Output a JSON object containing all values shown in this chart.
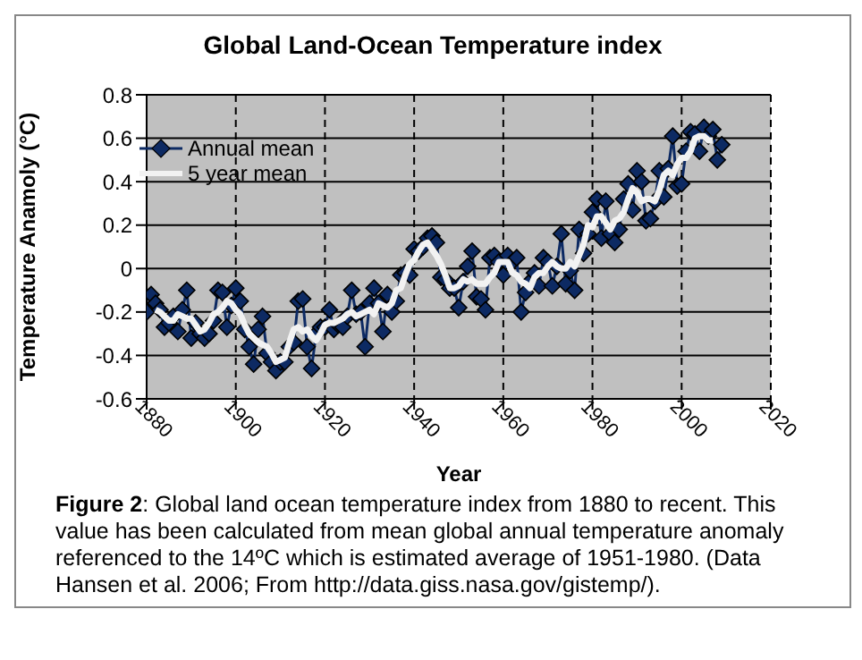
{
  "chart_data": {
    "type": "line",
    "title": "Global Land-Ocean Temperature index",
    "xlabel": "Year",
    "ylabel": "Temperature Anamoly (°C)",
    "xlim": [
      1880,
      2020
    ],
    "xticks": [
      1880,
      1900,
      1920,
      1940,
      1960,
      1980,
      2000,
      2020
    ],
    "ylim": [
      -0.6,
      0.8
    ],
    "yticks": [
      -0.6,
      -0.4,
      -0.2,
      0,
      0.2,
      0.4,
      0.6,
      0.8
    ],
    "grid": true,
    "legend": "top left",
    "annotations": [
      "Figure 2: Global land ocean temperature index from 1880 to recent.  This value has been calculated from mean global annual temperature anomaly referenced to the 14ºC which is estimated average of 1951-1980. (Data Hansen et al. 2006; From http://data.giss.nasa.gov/gistemp/)."
    ],
    "series": [
      {
        "name": "Annual mean",
        "color": "#0d2a63",
        "marker": "diamond",
        "x": [
          1880,
          1881,
          1882,
          1883,
          1884,
          1885,
          1886,
          1887,
          1888,
          1889,
          1890,
          1891,
          1892,
          1893,
          1894,
          1895,
          1896,
          1897,
          1898,
          1899,
          1900,
          1901,
          1902,
          1903,
          1904,
          1905,
          1906,
          1907,
          1908,
          1909,
          1910,
          1911,
          1912,
          1913,
          1914,
          1915,
          1916,
          1917,
          1918,
          1919,
          1920,
          1921,
          1922,
          1923,
          1924,
          1925,
          1926,
          1927,
          1928,
          1929,
          1930,
          1931,
          1932,
          1933,
          1934,
          1935,
          1936,
          1937,
          1938,
          1939,
          1940,
          1941,
          1942,
          1943,
          1944,
          1945,
          1946,
          1947,
          1948,
          1949,
          1950,
          1951,
          1952,
          1953,
          1954,
          1955,
          1956,
          1957,
          1958,
          1959,
          1960,
          1961,
          1962,
          1963,
          1964,
          1965,
          1966,
          1967,
          1968,
          1969,
          1970,
          1971,
          1972,
          1973,
          1974,
          1975,
          1976,
          1977,
          1978,
          1979,
          1980,
          1981,
          1982,
          1983,
          1984,
          1985,
          1986,
          1987,
          1988,
          1989,
          1990,
          1991,
          1992,
          1993,
          1994,
          1995,
          1996,
          1997,
          1998,
          1999,
          2000,
          2001,
          2002,
          2003,
          2004,
          2005,
          2006,
          2007,
          2008,
          2009
        ],
        "values": [
          -0.2,
          -0.12,
          -0.16,
          -0.19,
          -0.27,
          -0.25,
          -0.22,
          -0.29,
          -0.19,
          -0.1,
          -0.32,
          -0.25,
          -0.3,
          -0.32,
          -0.3,
          -0.24,
          -0.1,
          -0.11,
          -0.27,
          -0.17,
          -0.09,
          -0.15,
          -0.28,
          -0.36,
          -0.44,
          -0.28,
          -0.22,
          -0.39,
          -0.43,
          -0.47,
          -0.43,
          -0.43,
          -0.36,
          -0.34,
          -0.15,
          -0.14,
          -0.36,
          -0.46,
          -0.3,
          -0.27,
          -0.27,
          -0.19,
          -0.28,
          -0.26,
          -0.27,
          -0.22,
          -0.1,
          -0.21,
          -0.2,
          -0.36,
          -0.16,
          -0.09,
          -0.16,
          -0.29,
          -0.12,
          -0.2,
          -0.15,
          -0.03,
          -0.02,
          -0.03,
          0.09,
          0.08,
          0.1,
          0.14,
          0.15,
          0.12,
          -0.04,
          -0.05,
          -0.09,
          -0.09,
          -0.18,
          -0.06,
          0.01,
          0.08,
          -0.13,
          -0.14,
          -0.19,
          0.05,
          0.06,
          0.03,
          -0.03,
          0.06,
          0.03,
          0.05,
          -0.2,
          -0.11,
          -0.06,
          -0.02,
          -0.08,
          0.05,
          0.03,
          -0.08,
          0.01,
          0.16,
          -0.07,
          -0.01,
          -0.1,
          0.18,
          0.07,
          0.16,
          0.26,
          0.32,
          0.14,
          0.31,
          0.16,
          0.12,
          0.18,
          0.32,
          0.39,
          0.27,
          0.45,
          0.4,
          0.22,
          0.23,
          0.31,
          0.45,
          0.33,
          0.46,
          0.61,
          0.38,
          0.39,
          0.54,
          0.63,
          0.62,
          0.54,
          0.65,
          0.61,
          0.64,
          0.5,
          0.57
        ]
      },
      {
        "name": "5 year mean",
        "color": "#f2f2f2",
        "marker": "none",
        "x": [
          1882,
          1883,
          1884,
          1885,
          1886,
          1887,
          1888,
          1889,
          1890,
          1891,
          1892,
          1893,
          1894,
          1895,
          1896,
          1897,
          1898,
          1899,
          1900,
          1901,
          1902,
          1903,
          1904,
          1905,
          1906,
          1907,
          1908,
          1909,
          1910,
          1911,
          1912,
          1913,
          1914,
          1915,
          1916,
          1917,
          1918,
          1919,
          1920,
          1921,
          1922,
          1923,
          1924,
          1925,
          1926,
          1927,
          1928,
          1929,
          1930,
          1931,
          1932,
          1933,
          1934,
          1935,
          1936,
          1937,
          1938,
          1939,
          1940,
          1941,
          1942,
          1943,
          1944,
          1945,
          1946,
          1947,
          1948,
          1949,
          1950,
          1951,
          1952,
          1953,
          1954,
          1955,
          1956,
          1957,
          1958,
          1959,
          1960,
          1961,
          1962,
          1963,
          1964,
          1965,
          1966,
          1967,
          1968,
          1969,
          1970,
          1971,
          1972,
          1973,
          1974,
          1975,
          1976,
          1977,
          1978,
          1979,
          1980,
          1981,
          1982,
          1983,
          1984,
          1985,
          1986,
          1987,
          1988,
          1989,
          1990,
          1991,
          1992,
          1993,
          1994,
          1995,
          1996,
          1997,
          1998,
          1999,
          2000,
          2001,
          2002,
          2003,
          2004,
          2005,
          2006,
          2007
        ],
        "values": [
          -0.19,
          -0.2,
          -0.22,
          -0.24,
          -0.24,
          -0.21,
          -0.22,
          -0.23,
          -0.23,
          -0.26,
          -0.29,
          -0.28,
          -0.25,
          -0.21,
          -0.2,
          -0.18,
          -0.15,
          -0.16,
          -0.19,
          -0.21,
          -0.26,
          -0.3,
          -0.32,
          -0.34,
          -0.35,
          -0.36,
          -0.39,
          -0.43,
          -0.42,
          -0.41,
          -0.34,
          -0.28,
          -0.27,
          -0.29,
          -0.28,
          -0.31,
          -0.33,
          -0.3,
          -0.26,
          -0.25,
          -0.25,
          -0.24,
          -0.23,
          -0.21,
          -0.2,
          -0.22,
          -0.21,
          -0.2,
          -0.19,
          -0.21,
          -0.16,
          -0.17,
          -0.18,
          -0.16,
          -0.1,
          -0.09,
          -0.03,
          0.02,
          0.04,
          0.08,
          0.11,
          0.12,
          0.09,
          0.06,
          0.02,
          -0.03,
          -0.09,
          -0.09,
          -0.08,
          -0.05,
          -0.06,
          -0.05,
          -0.07,
          -0.07,
          -0.07,
          -0.04,
          -0.02,
          0.03,
          0.03,
          0.03,
          -0.02,
          -0.03,
          -0.06,
          -0.07,
          -0.09,
          -0.04,
          -0.02,
          -0.02,
          0.01,
          0.03,
          0.01,
          0.0,
          0.0,
          0.03,
          0.01,
          0.06,
          0.11,
          0.2,
          0.19,
          0.24,
          0.24,
          0.21,
          0.18,
          0.22,
          0.23,
          0.26,
          0.32,
          0.37,
          0.35,
          0.31,
          0.32,
          0.32,
          0.31,
          0.36,
          0.43,
          0.45,
          0.43,
          0.48,
          0.51,
          0.51,
          0.54,
          0.6,
          0.61,
          0.61,
          0.59,
          0.59
        ]
      }
    ]
  }
}
